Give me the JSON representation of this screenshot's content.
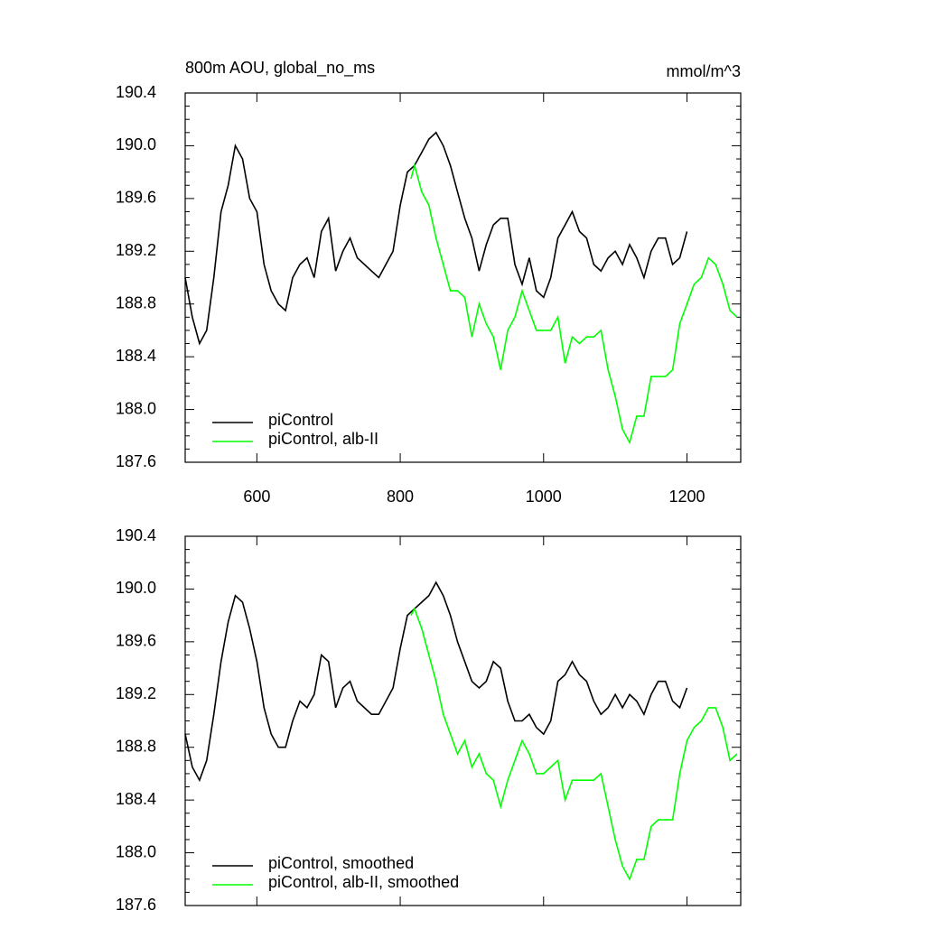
{
  "chart_data": [
    {
      "type": "line",
      "title": "800m AOU, global_no_ms",
      "units": "mmol/m^3",
      "xlim": [
        500,
        1275
      ],
      "ylim": [
        187.6,
        190.4
      ],
      "xticks": [
        600,
        800,
        1000,
        1200
      ],
      "yticks": [
        187.6,
        {
          "value": 188,
          "label": "188.0"
        },
        188.4,
        188.8,
        189.2,
        189.6,
        {
          "value": 190,
          "label": "190.0"
        },
        190.4
      ],
      "legend": "lower left",
      "series": [
        {
          "name": "piControl",
          "color": "#000000",
          "x": [
            500,
            510,
            520,
            530,
            540,
            550,
            560,
            570,
            580,
            590,
            600,
            610,
            620,
            630,
            640,
            650,
            660,
            670,
            680,
            690,
            700,
            710,
            720,
            730,
            740,
            750,
            760,
            770,
            780,
            790,
            800,
            810,
            820,
            830,
            840,
            850,
            860,
            870,
            880,
            890,
            900,
            910,
            920,
            930,
            940,
            950,
            960,
            970,
            980,
            990,
            1000,
            1010,
            1020,
            1030,
            1040,
            1050,
            1060,
            1070,
            1080,
            1090,
            1100,
            1110,
            1120,
            1130,
            1140,
            1150,
            1160,
            1170,
            1180,
            1190,
            1200
          ],
          "values": [
            189.0,
            188.7,
            188.5,
            188.6,
            189.0,
            189.5,
            189.7,
            190.0,
            189.9,
            189.6,
            189.5,
            189.1,
            188.9,
            188.8,
            188.75,
            189.0,
            189.1,
            189.15,
            189.0,
            189.35,
            189.45,
            189.05,
            189.2,
            189.3,
            189.15,
            189.1,
            189.05,
            189.0,
            189.1,
            189.2,
            189.55,
            189.8,
            189.85,
            189.95,
            190.05,
            190.1,
            190.0,
            189.85,
            189.65,
            189.45,
            189.3,
            189.05,
            189.25,
            189.4,
            189.45,
            189.45,
            189.1,
            188.95,
            189.15,
            188.9,
            188.85,
            189.0,
            189.3,
            189.4,
            189.5,
            189.35,
            189.3,
            189.1,
            189.05,
            189.15,
            189.2,
            189.1,
            189.25,
            189.15,
            189.0,
            189.2,
            189.3,
            189.3,
            189.1,
            189.15,
            189.35
          ]
        },
        {
          "name": "piControl, alb-II",
          "color": "#00ff00",
          "x": [
            815,
            820,
            830,
            840,
            850,
            860,
            870,
            880,
            890,
            900,
            910,
            920,
            930,
            940,
            950,
            960,
            970,
            980,
            990,
            1000,
            1010,
            1020,
            1030,
            1040,
            1050,
            1060,
            1070,
            1080,
            1090,
            1100,
            1110,
            1120,
            1130,
            1140,
            1150,
            1160,
            1170,
            1180,
            1190,
            1200,
            1210,
            1220,
            1230,
            1240,
            1250,
            1260,
            1270
          ],
          "values": [
            189.75,
            189.85,
            189.65,
            189.55,
            189.3,
            189.1,
            188.9,
            188.9,
            188.85,
            188.55,
            188.8,
            188.65,
            188.55,
            188.3,
            188.6,
            188.7,
            188.9,
            188.75,
            188.6,
            188.6,
            188.6,
            188.7,
            188.35,
            188.55,
            188.5,
            188.55,
            188.55,
            188.6,
            188.3,
            188.1,
            187.85,
            187.75,
            187.95,
            187.95,
            188.25,
            188.25,
            188.25,
            188.3,
            188.65,
            188.8,
            188.95,
            189.0,
            189.15,
            189.1,
            188.95,
            188.75,
            188.7
          ]
        }
      ]
    },
    {
      "type": "line",
      "xlim": [
        500,
        1275
      ],
      "ylim": [
        187.6,
        190.4
      ],
      "yticks": [
        187.6,
        {
          "value": 188,
          "label": "188.0"
        },
        188.4,
        188.8,
        189.2,
        189.6,
        {
          "value": 190,
          "label": "190.0"
        },
        190.4
      ],
      "legend": "lower left",
      "series": [
        {
          "name": "piControl, smoothed",
          "color": "#000000",
          "x": [
            500,
            510,
            520,
            530,
            540,
            550,
            560,
            570,
            580,
            590,
            600,
            610,
            620,
            630,
            640,
            650,
            660,
            670,
            680,
            690,
            700,
            710,
            720,
            730,
            740,
            750,
            760,
            770,
            780,
            790,
            800,
            810,
            820,
            830,
            840,
            850,
            860,
            870,
            880,
            890,
            900,
            910,
            920,
            930,
            940,
            950,
            960,
            970,
            980,
            990,
            1000,
            1010,
            1020,
            1030,
            1040,
            1050,
            1060,
            1070,
            1080,
            1090,
            1100,
            1110,
            1120,
            1130,
            1140,
            1150,
            1160,
            1170,
            1180,
            1190,
            1200
          ],
          "values": [
            188.9,
            188.65,
            188.55,
            188.7,
            189.05,
            189.45,
            189.75,
            189.95,
            189.9,
            189.7,
            189.45,
            189.1,
            188.9,
            188.8,
            188.8,
            189.0,
            189.15,
            189.1,
            189.2,
            189.5,
            189.45,
            189.1,
            189.25,
            189.3,
            189.15,
            189.1,
            189.05,
            189.05,
            189.15,
            189.25,
            189.55,
            189.8,
            189.85,
            189.9,
            189.95,
            190.05,
            189.95,
            189.8,
            189.6,
            189.45,
            189.3,
            189.25,
            189.3,
            189.45,
            189.4,
            189.15,
            189.0,
            189.0,
            189.05,
            188.95,
            188.9,
            189.0,
            189.3,
            189.35,
            189.45,
            189.35,
            189.3,
            189.15,
            189.05,
            189.1,
            189.2,
            189.1,
            189.2,
            189.15,
            189.05,
            189.2,
            189.3,
            189.3,
            189.15,
            189.1,
            189.25
          ]
        },
        {
          "name": "piControl, alb-II, smoothed",
          "color": "#00ff00",
          "x": [
            815,
            820,
            830,
            840,
            850,
            860,
            870,
            880,
            890,
            900,
            910,
            920,
            930,
            940,
            950,
            960,
            970,
            980,
            990,
            1000,
            1010,
            1020,
            1030,
            1040,
            1050,
            1060,
            1070,
            1080,
            1090,
            1100,
            1110,
            1120,
            1130,
            1140,
            1150,
            1160,
            1170,
            1180,
            1190,
            1200,
            1210,
            1220,
            1230,
            1240,
            1250,
            1260,
            1270
          ],
          "values": [
            189.8,
            189.85,
            189.7,
            189.5,
            189.3,
            189.05,
            188.9,
            188.75,
            188.85,
            188.65,
            188.75,
            188.6,
            188.55,
            188.35,
            188.55,
            188.7,
            188.85,
            188.75,
            188.6,
            188.6,
            188.65,
            188.7,
            188.4,
            188.55,
            188.55,
            188.55,
            188.55,
            188.6,
            188.35,
            188.1,
            187.9,
            187.8,
            187.95,
            187.95,
            188.2,
            188.25,
            188.25,
            188.25,
            188.6,
            188.85,
            188.95,
            189.0,
            189.1,
            189.1,
            188.95,
            188.7,
            188.75
          ]
        }
      ]
    }
  ]
}
